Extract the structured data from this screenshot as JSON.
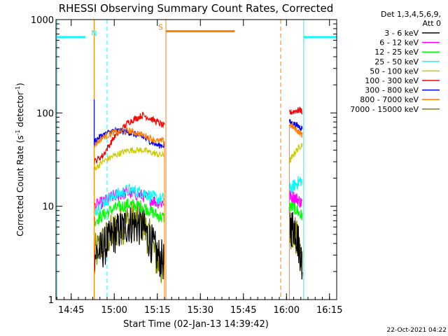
{
  "chart_data": {
    "type": "line",
    "title": "RHESSI Observing Summary Count Rates, Corrected",
    "xlabel": "Start Time (02-Jan-13 14:39:42)",
    "ylabel_main": "Corrected Count Rate (s",
    "ylabel_sup1": "-1",
    "ylabel_mid": " detector",
    "ylabel_sup2": "-1",
    "ylabel_end": ")",
    "yscale": "log",
    "ylim": [
      1,
      1000
    ],
    "xlim_minutes_after_1440": [
      -0.3,
      97.5
    ],
    "y_ticks": [
      {
        "value": 1,
        "label": "1"
      },
      {
        "value": 10,
        "label": "10"
      },
      {
        "value": 100,
        "label": "100"
      },
      {
        "value": 1000,
        "label": "1000"
      }
    ],
    "x_ticks": [
      {
        "value": 5,
        "label": "14:45"
      },
      {
        "value": 20,
        "label": "15:00"
      },
      {
        "value": 35,
        "label": "15:15"
      },
      {
        "value": 50,
        "label": "15:30"
      },
      {
        "value": 65,
        "label": "15:45"
      },
      {
        "value": 80,
        "label": "16:00"
      },
      {
        "value": 95,
        "label": "16:15"
      }
    ],
    "legend_header": [
      "Det 1,3,4,5,6,9,",
      "Att 0"
    ],
    "legend_placement": "top-right, outside plot",
    "series": [
      {
        "name": "3 - 6 keV",
        "color": "#000000"
      },
      {
        "name": "6 - 12 keV",
        "color": "#ff00ff"
      },
      {
        "name": "12 - 25 keV",
        "color": "#00ff00"
      },
      {
        "name": "25 - 50 keV",
        "color": "#00ffff"
      },
      {
        "name": "50 - 100 keV",
        "color": "#cccc00"
      },
      {
        "name": "100 - 300 keV",
        "color": "#ff0000"
      },
      {
        "name": "300 - 800 keV",
        "color": "#0000ff"
      },
      {
        "name": "800 - 7000 keV",
        "color": "#ff7f00"
      },
      {
        "name": "7000 - 15000 keV",
        "color": "#808000"
      }
    ],
    "data_segments": [
      {
        "x_range": [
          13,
          37.5
        ],
        "segment": "first orbit day interval"
      },
      {
        "x_range": [
          81,
          85.5
        ],
        "segment": "second orbit day interval"
      }
    ],
    "series_profiles": [
      {
        "name": "3 - 6 keV",
        "seg1": [
          [
            13,
            3
          ],
          [
            16,
            3.5
          ],
          [
            20,
            5
          ],
          [
            25,
            6.5
          ],
          [
            30,
            6
          ],
          [
            33,
            4
          ],
          [
            35,
            3
          ],
          [
            37.5,
            2.5
          ]
        ],
        "seg2": [
          [
            81,
            6
          ],
          [
            83,
            6
          ],
          [
            85,
            3
          ],
          [
            85.5,
            2
          ]
        ]
      },
      {
        "name": "6 - 12 keV",
        "seg1": [
          [
            13,
            10
          ],
          [
            16,
            11
          ],
          [
            20,
            13
          ],
          [
            25,
            14
          ],
          [
            30,
            13
          ],
          [
            35,
            11
          ],
          [
            37.5,
            11
          ]
        ],
        "seg2": [
          [
            81,
            13
          ],
          [
            83,
            12.5
          ],
          [
            85,
            11
          ],
          [
            85.5,
            11
          ]
        ]
      },
      {
        "name": "12 - 25 keV",
        "seg1": [
          [
            13,
            7
          ],
          [
            16,
            8
          ],
          [
            20,
            9.5
          ],
          [
            25,
            10.5
          ],
          [
            30,
            10
          ],
          [
            35,
            8
          ],
          [
            37.5,
            7.5
          ]
        ],
        "seg2": [
          [
            81,
            10
          ],
          [
            83,
            9.5
          ],
          [
            85,
            8
          ],
          [
            85.5,
            8
          ]
        ]
      },
      {
        "name": "25 - 50 keV",
        "seg1": [
          [
            13,
            9
          ],
          [
            16,
            11
          ],
          [
            20,
            13
          ],
          [
            25,
            15
          ],
          [
            30,
            14
          ],
          [
            35,
            12
          ],
          [
            37.5,
            12
          ]
        ],
        "seg2": [
          [
            81,
            15
          ],
          [
            83,
            17
          ],
          [
            85,
            19
          ],
          [
            85.5,
            18
          ]
        ]
      },
      {
        "name": "50 - 100 keV",
        "seg1": [
          [
            13,
            25
          ],
          [
            16,
            30
          ],
          [
            20,
            35
          ],
          [
            25,
            40
          ],
          [
            30,
            40
          ],
          [
            35,
            36
          ],
          [
            37.5,
            35
          ]
        ],
        "seg2": [
          [
            81,
            30
          ],
          [
            83,
            38
          ],
          [
            85,
            45
          ],
          [
            85.5,
            46
          ]
        ]
      },
      {
        "name": "100 - 300 keV",
        "seg1": [
          [
            13,
            30
          ],
          [
            16,
            35
          ],
          [
            20,
            55
          ],
          [
            25,
            80
          ],
          [
            30,
            95
          ],
          [
            35,
            80
          ],
          [
            37.5,
            72
          ]
        ],
        "seg2": [
          [
            81,
            100
          ],
          [
            83,
            105
          ],
          [
            85,
            108
          ],
          [
            85.5,
            100
          ]
        ]
      },
      {
        "name": "300 - 800 keV",
        "seg1": [
          [
            13,
            50
          ],
          [
            16,
            58
          ],
          [
            20,
            65
          ],
          [
            25,
            62
          ],
          [
            30,
            55
          ],
          [
            35,
            45
          ],
          [
            37.5,
            45
          ]
        ],
        "seg2": [
          [
            81,
            80
          ],
          [
            83,
            75
          ],
          [
            85,
            70
          ],
          [
            85.5,
            68
          ]
        ]
      },
      {
        "name": "800 - 7000 keV",
        "seg1": [
          [
            13,
            45
          ],
          [
            16,
            55
          ],
          [
            20,
            62
          ],
          [
            25,
            65
          ],
          [
            30,
            58
          ],
          [
            35,
            50
          ],
          [
            37.5,
            50
          ]
        ],
        "seg2": [
          [
            81,
            75
          ],
          [
            83,
            68
          ],
          [
            85,
            60
          ],
          [
            85.5,
            58
          ]
        ]
      },
      {
        "name": "7000 - 15000 keV",
        "seg1": [
          [
            13,
            3
          ],
          [
            16,
            4
          ],
          [
            20,
            5.5
          ],
          [
            25,
            7
          ],
          [
            30,
            6.5
          ],
          [
            33,
            4
          ],
          [
            35,
            2.5
          ],
          [
            37.5,
            2
          ]
        ],
        "seg2": [
          [
            81,
            6
          ],
          [
            83,
            5
          ],
          [
            85,
            3
          ],
          [
            85.5,
            2.5
          ]
        ]
      }
    ],
    "spike": {
      "x": 13,
      "y": 140,
      "color": "#0000ff"
    },
    "orbit_bars": [
      {
        "label": "N",
        "color": "#00ffff",
        "x_range": [
          0,
          10
        ],
        "y": 650
      },
      {
        "label": "",
        "color": "#00ffff",
        "x_range": [
          86,
          97.5
        ],
        "y": 650
      },
      {
        "label": "S",
        "color": "#ff7f00",
        "x_range": [
          38,
          62
        ],
        "y": 750
      }
    ],
    "vertical_markers": [
      {
        "x": 0,
        "color": "#00ffff",
        "style": "solid"
      },
      {
        "x": 13,
        "color": "#ff7f00",
        "style": "solid"
      },
      {
        "x": 17.5,
        "color": "#00ffff",
        "style": "dashed"
      },
      {
        "x": 38,
        "color": "#ff7f00",
        "style": "solid"
      },
      {
        "x": 78,
        "color": "#ff7f00",
        "style": "dashed"
      },
      {
        "x": 86,
        "color": "#00ffff",
        "style": "solid"
      },
      {
        "x": 97.5,
        "color": "#00ffff",
        "style": "dashed"
      }
    ],
    "timestamp": "22-Oct-2021 04:22"
  }
}
